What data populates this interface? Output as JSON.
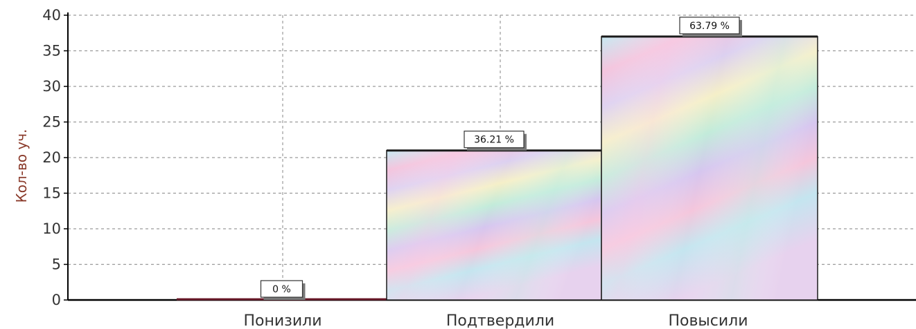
{
  "chart_data": {
    "type": "bar",
    "categories": [
      "Понизили",
      "Подтвердили",
      "Повысили"
    ],
    "values": [
      0,
      21,
      37
    ],
    "data_labels": [
      "0 %",
      "36.21 %",
      "63.79 %"
    ],
    "ylabel": "Кол-во уч.",
    "ylim": [
      0,
      40
    ],
    "yticks": [
      "0",
      "5",
      "10",
      "15",
      "20",
      "25",
      "30",
      "35",
      "40"
    ],
    "grid": true,
    "colors": {
      "bar_outline": "#1a1a1a",
      "grid": "#9a9a9a",
      "axis": "#000000",
      "bar_gradient": [
        "#b9e6ee",
        "#f0bcd9",
        "#d5c6ee",
        "#f4eec4",
        "#bfe9d8"
      ]
    }
  }
}
